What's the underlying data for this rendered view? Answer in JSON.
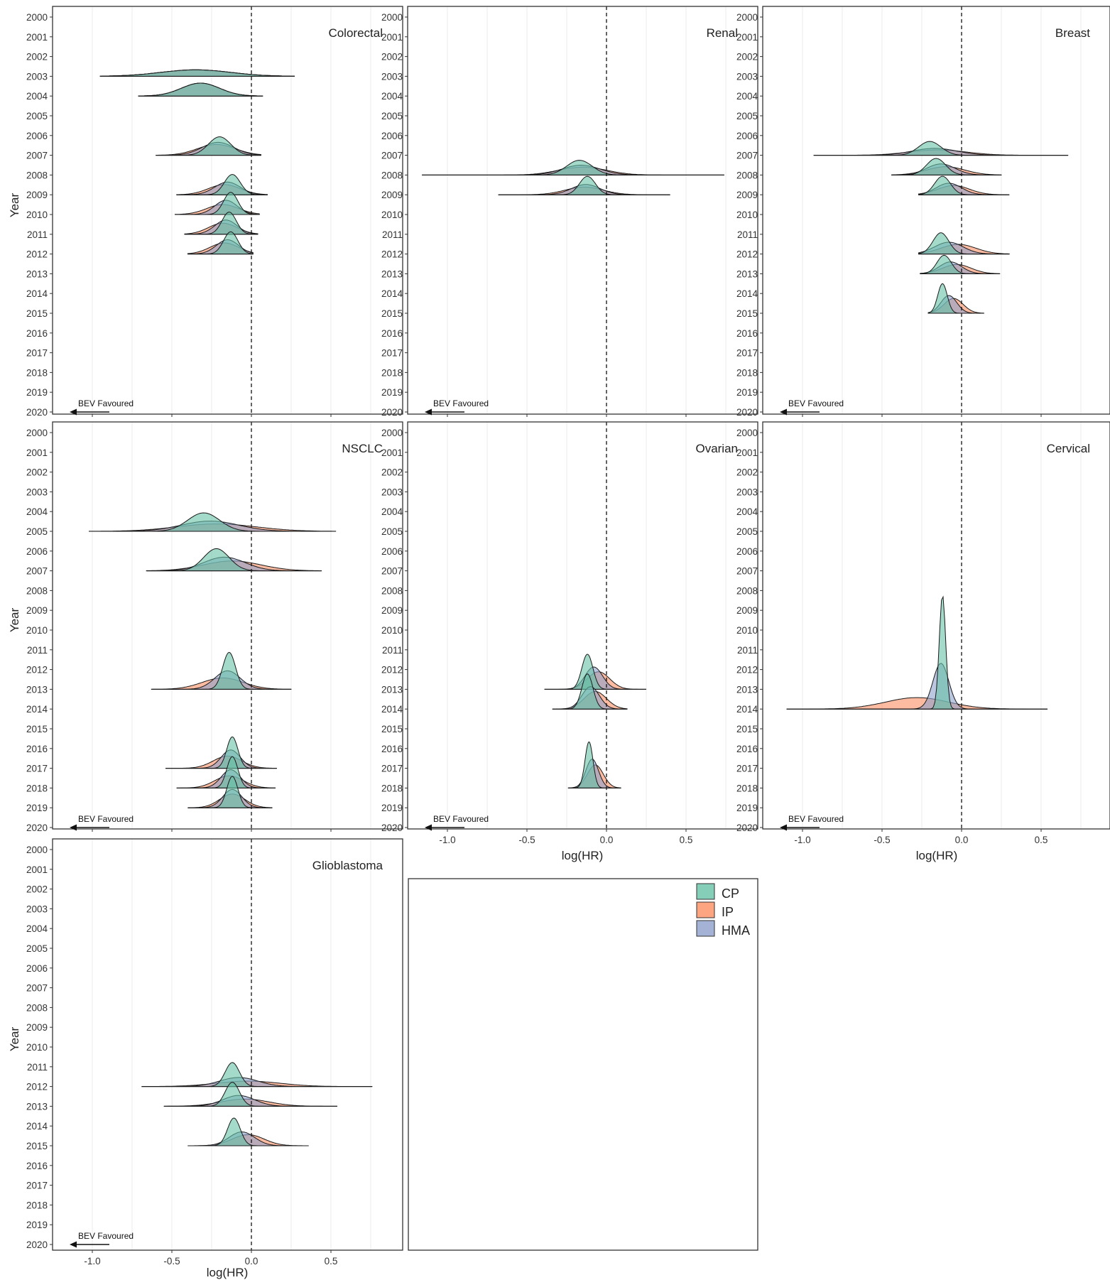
{
  "figure": {
    "y_axis_label": "Year",
    "x_axis_label": "log(HR)",
    "annotation": "BEV Favoured"
  },
  "legend": {
    "position": "top-right of empty panel",
    "items": [
      {
        "key": "CP",
        "label": "CP",
        "color": "#66c2a5"
      },
      {
        "key": "IP",
        "label": "IP",
        "color": "#fc8d62"
      },
      {
        "key": "HMA",
        "label": "HMA",
        "color": "#8da0cb"
      }
    ]
  },
  "chart_data": [
    {
      "type": "area",
      "subtype": "ridgeline density (posterior log hazard ratio by year)",
      "title": "Colorectal",
      "xlabel": "log(HR)",
      "ylabel": "Year",
      "xlim": [
        -1.25,
        0.85
      ],
      "x_ticks": [
        "-1.0",
        "-0.5",
        "0.0",
        "0.5"
      ],
      "y_ticks": [
        "2000",
        "2001",
        "2002",
        "2003",
        "2004",
        "2005",
        "2006",
        "2007",
        "2008",
        "2009",
        "2010",
        "2011",
        "2012",
        "2013",
        "2014",
        "2015",
        "2016",
        "2017",
        "2018",
        "2019",
        "2020"
      ],
      "reference_line": 0,
      "grid": true,
      "ridges": [
        {
          "year": 2003,
          "height": 0.35,
          "CP": [
            -0.35,
            0.22,
            -0.95,
            0.27
          ],
          "IP": [
            -0.35,
            0.22,
            -0.95,
            0.27
          ],
          "HMA": [
            -0.35,
            0.22,
            -0.95,
            0.27
          ]
        },
        {
          "year": 2004,
          "height": 0.7,
          "CP": [
            -0.32,
            0.12,
            -0.71,
            0.07
          ],
          "IP": [
            -0.32,
            0.12,
            -0.71,
            0.07
          ],
          "HMA": [
            -0.32,
            0.12,
            -0.71,
            0.07
          ]
        },
        {
          "year": 2007,
          "height": 1.0,
          "CP": [
            -0.2,
            0.07,
            -0.6,
            0.06
          ],
          "IP": [
            -0.22,
            0.12,
            -0.6,
            0.06
          ],
          "HMA": [
            -0.21,
            0.1,
            -0.6,
            0.06
          ]
        },
        {
          "year": 2009,
          "height": 1.1,
          "CP": [
            -0.12,
            0.05,
            -0.47,
            0.1
          ],
          "IP": [
            -0.17,
            0.1,
            -0.47,
            0.1
          ],
          "HMA": [
            -0.15,
            0.08,
            -0.47,
            0.1
          ]
        },
        {
          "year": 2010,
          "height": 1.2,
          "CP": [
            -0.13,
            0.045,
            -0.48,
            0.05
          ],
          "IP": [
            -0.18,
            0.1,
            -0.48,
            0.05
          ],
          "HMA": [
            -0.16,
            0.07,
            -0.48,
            0.05
          ]
        },
        {
          "year": 2011,
          "height": 1.2,
          "CP": [
            -0.14,
            0.045,
            -0.42,
            0.04
          ],
          "IP": [
            -0.18,
            0.09,
            -0.42,
            0.04
          ],
          "HMA": [
            -0.16,
            0.07,
            -0.42,
            0.04
          ]
        },
        {
          "year": 2012,
          "height": 1.2,
          "CP": [
            -0.13,
            0.045,
            -0.4,
            0.01
          ],
          "IP": [
            -0.17,
            0.09,
            -0.4,
            0.01
          ],
          "HMA": [
            -0.15,
            0.07,
            -0.4,
            0.01
          ]
        }
      ]
    },
    {
      "type": "area",
      "subtype": "ridgeline density (posterior log hazard ratio by year)",
      "title": "Renal",
      "xlabel": "log(HR)",
      "ylabel": "Year",
      "xlim": [
        -1.25,
        0.85
      ],
      "x_ticks": [
        "-1.0",
        "-0.5",
        "0.0",
        "0.5"
      ],
      "y_ticks": [
        "2000",
        "2001",
        "2002",
        "2003",
        "2004",
        "2005",
        "2006",
        "2007",
        "2008",
        "2009",
        "2010",
        "2011",
        "2012",
        "2013",
        "2014",
        "2015",
        "2016",
        "2017",
        "2018",
        "2019",
        "2020"
      ],
      "reference_line": 0,
      "grid": true,
      "ridges": [
        {
          "year": 2008,
          "height": 0.8,
          "CP": [
            -0.17,
            0.08,
            -1.16,
            0.74
          ],
          "IP": [
            -0.15,
            0.15,
            -1.16,
            0.74
          ],
          "HMA": [
            -0.16,
            0.12,
            -1.16,
            0.74
          ]
        },
        {
          "year": 2009,
          "height": 1.0,
          "CP": [
            -0.12,
            0.05,
            -0.68,
            0.4
          ],
          "IP": [
            -0.14,
            0.12,
            -0.68,
            0.4
          ],
          "HMA": [
            -0.13,
            0.09,
            -0.68,
            0.4
          ]
        }
      ]
    },
    {
      "type": "area",
      "subtype": "ridgeline density (posterior log hazard ratio by year)",
      "title": "Breast",
      "xlabel": "log(HR)",
      "ylabel": "Year",
      "xlim": [
        -1.25,
        0.85
      ],
      "x_ticks": [
        "-1.0",
        "-0.5",
        "0.0",
        "0.5"
      ],
      "y_ticks": [
        "2000",
        "2001",
        "2002",
        "2003",
        "2004",
        "2005",
        "2006",
        "2007",
        "2008",
        "2009",
        "2010",
        "2011",
        "2012",
        "2013",
        "2014",
        "2015",
        "2016",
        "2017",
        "2018",
        "2019",
        "2020"
      ],
      "reference_line": 0,
      "grid": true,
      "ridges": [
        {
          "year": 2007,
          "height": 0.75,
          "CP": [
            -0.2,
            0.07,
            -0.93,
            0.67
          ],
          "IP": [
            -0.15,
            0.18,
            -0.93,
            0.67
          ],
          "HMA": [
            -0.17,
            0.14,
            -0.93,
            0.67
          ]
        },
        {
          "year": 2008,
          "height": 0.9,
          "CP": [
            -0.16,
            0.06,
            -0.44,
            0.25
          ],
          "IP": [
            -0.1,
            0.12,
            -0.44,
            0.25
          ],
          "HMA": [
            -0.13,
            0.09,
            -0.44,
            0.25
          ]
        },
        {
          "year": 2009,
          "height": 1.0,
          "CP": [
            -0.12,
            0.05,
            -0.27,
            0.3
          ],
          "IP": [
            -0.05,
            0.1,
            -0.27,
            0.3
          ],
          "HMA": [
            -0.08,
            0.08,
            -0.27,
            0.3
          ]
        },
        {
          "year": 2012,
          "height": 1.15,
          "CP": [
            -0.13,
            0.05,
            -0.27,
            0.3
          ],
          "IP": [
            -0.02,
            0.11,
            -0.27,
            0.3
          ],
          "HMA": [
            -0.08,
            0.09,
            -0.27,
            0.3
          ]
        },
        {
          "year": 2013,
          "height": 1.0,
          "CP": [
            -0.11,
            0.045,
            -0.26,
            0.24
          ],
          "IP": [
            -0.03,
            0.09,
            -0.26,
            0.24
          ],
          "HMA": [
            -0.07,
            0.07,
            -0.26,
            0.24
          ]
        },
        {
          "year": 2015,
          "height": 1.6,
          "CP": [
            -0.12,
            0.03,
            -0.21,
            0.14
          ],
          "IP": [
            -0.05,
            0.06,
            -0.21,
            0.14
          ],
          "HMA": [
            -0.08,
            0.05,
            -0.21,
            0.14
          ]
        }
      ]
    },
    {
      "type": "area",
      "subtype": "ridgeline density (posterior log hazard ratio by year)",
      "title": "NSCLC",
      "xlabel": "log(HR)",
      "ylabel": "Year",
      "xlim": [
        -1.25,
        0.85
      ],
      "x_ticks": [
        "-1.0",
        "-0.5",
        "0.0",
        "0.5"
      ],
      "y_ticks": [
        "2000",
        "2001",
        "2002",
        "2003",
        "2004",
        "2005",
        "2006",
        "2007",
        "2008",
        "2009",
        "2010",
        "2011",
        "2012",
        "2013",
        "2014",
        "2015",
        "2016",
        "2017",
        "2018",
        "2019",
        "2020"
      ],
      "reference_line": 0,
      "grid": true,
      "ridges": [
        {
          "year": 2005,
          "height": 1.0,
          "CP": [
            -0.3,
            0.1,
            -1.02,
            0.53
          ],
          "IP": [
            -0.22,
            0.25,
            -1.02,
            0.53
          ],
          "HMA": [
            -0.26,
            0.18,
            -1.02,
            0.53
          ]
        },
        {
          "year": 2007,
          "height": 1.2,
          "CP": [
            -0.22,
            0.08,
            -0.66,
            0.44
          ],
          "IP": [
            -0.12,
            0.18,
            -0.66,
            0.44
          ],
          "HMA": [
            -0.17,
            0.13,
            -0.66,
            0.44
          ]
        },
        {
          "year": 2013,
          "height": 2.0,
          "CP": [
            -0.14,
            0.04,
            -0.63,
            0.25
          ],
          "IP": [
            -0.18,
            0.13,
            -0.63,
            0.25
          ],
          "HMA": [
            -0.15,
            0.08,
            -0.63,
            0.25
          ]
        },
        {
          "year": 2017,
          "height": 1.7,
          "CP": [
            -0.12,
            0.035,
            -0.54,
            0.16
          ],
          "IP": [
            -0.15,
            0.09,
            -0.54,
            0.16
          ],
          "HMA": [
            -0.13,
            0.06,
            -0.54,
            0.16
          ]
        },
        {
          "year": 2018,
          "height": 1.7,
          "CP": [
            -0.12,
            0.035,
            -0.47,
            0.15
          ],
          "IP": [
            -0.14,
            0.09,
            -0.47,
            0.15
          ],
          "HMA": [
            -0.13,
            0.06,
            -0.47,
            0.15
          ]
        },
        {
          "year": 2019,
          "height": 1.7,
          "CP": [
            -0.12,
            0.035,
            -0.4,
            0.13
          ],
          "IP": [
            -0.12,
            0.08,
            -0.4,
            0.13
          ],
          "HMA": [
            -0.12,
            0.06,
            -0.4,
            0.13
          ]
        }
      ]
    },
    {
      "type": "area",
      "subtype": "ridgeline density (posterior log hazard ratio by year)",
      "title": "Ovarian",
      "xlabel": "log(HR)",
      "ylabel": "Year",
      "xlim": [
        -1.25,
        0.85
      ],
      "x_ticks": [
        "-1.0",
        "-0.5",
        "0.0",
        "0.5"
      ],
      "y_ticks": [
        "2000",
        "2001",
        "2002",
        "2003",
        "2004",
        "2005",
        "2006",
        "2007",
        "2008",
        "2009",
        "2010",
        "2011",
        "2012",
        "2013",
        "2014",
        "2015",
        "2016",
        "2017",
        "2018",
        "2019",
        "2020"
      ],
      "reference_line": 0,
      "grid": true,
      "ridges": [
        {
          "year": 2013,
          "height": 1.9,
          "CP": [
            -0.12,
            0.035,
            -0.39,
            0.25
          ],
          "IP": [
            -0.05,
            0.07,
            -0.39,
            0.25
          ],
          "HMA": [
            -0.08,
            0.055,
            -0.39,
            0.25
          ]
        },
        {
          "year": 2014,
          "height": 1.9,
          "CP": [
            -0.12,
            0.035,
            -0.34,
            0.13
          ],
          "IP": [
            -0.07,
            0.07,
            -0.34,
            0.13
          ],
          "HMA": [
            -0.1,
            0.055,
            -0.34,
            0.13
          ]
        },
        {
          "year": 2018,
          "height": 2.5,
          "CP": [
            -0.11,
            0.025,
            -0.24,
            0.09
          ],
          "IP": [
            -0.07,
            0.05,
            -0.24,
            0.09
          ],
          "HMA": [
            -0.09,
            0.04,
            -0.24,
            0.09
          ]
        }
      ]
    },
    {
      "type": "area",
      "subtype": "ridgeline density (posterior log hazard ratio by year)",
      "title": "Cervical",
      "xlabel": "log(HR)",
      "ylabel": "Year",
      "xlim": [
        -1.25,
        0.85
      ],
      "x_ticks": [
        "-1.0",
        "-0.5",
        "0.0",
        "0.5"
      ],
      "y_ticks": [
        "2000",
        "2001",
        "2002",
        "2003",
        "2004",
        "2005",
        "2006",
        "2007",
        "2008",
        "2009",
        "2010",
        "2011",
        "2012",
        "2013",
        "2014",
        "2015",
        "2016",
        "2017",
        "2018",
        "2019",
        "2020"
      ],
      "reference_line": 0,
      "grid": true,
      "ridges": [
        {
          "year": 2014,
          "height": 6.2,
          "CP": [
            -0.12,
            0.02,
            -1.1,
            0.54
          ],
          "IP": [
            -0.28,
            0.2,
            -1.1,
            0.54
          ],
          "HMA": [
            -0.13,
            0.05,
            -1.1,
            0.54
          ]
        }
      ]
    },
    {
      "type": "area",
      "subtype": "ridgeline density (posterior log hazard ratio by year)",
      "title": "Glioblastoma",
      "xlabel": "log(HR)",
      "ylabel": "Year",
      "xlim": [
        -1.25,
        0.85
      ],
      "x_ticks": [
        "-1.0",
        "-0.5",
        "0.0",
        "0.5"
      ],
      "y_ticks": [
        "2000",
        "2001",
        "2002",
        "2003",
        "2004",
        "2005",
        "2006",
        "2007",
        "2008",
        "2009",
        "2010",
        "2011",
        "2012",
        "2013",
        "2014",
        "2015",
        "2016",
        "2017",
        "2018",
        "2019",
        "2020"
      ],
      "reference_line": 0,
      "grid": true,
      "ridges": [
        {
          "year": 2012,
          "height": 1.3,
          "CP": [
            -0.12,
            0.045,
            -0.69,
            0.76
          ],
          "IP": [
            -0.02,
            0.2,
            -0.69,
            0.76
          ],
          "HMA": [
            -0.08,
            0.12,
            -0.69,
            0.76
          ]
        },
        {
          "year": 2013,
          "height": 1.3,
          "CP": [
            -0.12,
            0.045,
            -0.55,
            0.54
          ],
          "IP": [
            -0.04,
            0.15,
            -0.55,
            0.54
          ],
          "HMA": [
            -0.08,
            0.1,
            -0.55,
            0.54
          ]
        },
        {
          "year": 2015,
          "height": 1.5,
          "CP": [
            -0.11,
            0.04,
            -0.4,
            0.36
          ],
          "IP": [
            -0.02,
            0.1,
            -0.4,
            0.36
          ],
          "HMA": [
            -0.06,
            0.08,
            -0.4,
            0.36
          ]
        }
      ]
    }
  ]
}
